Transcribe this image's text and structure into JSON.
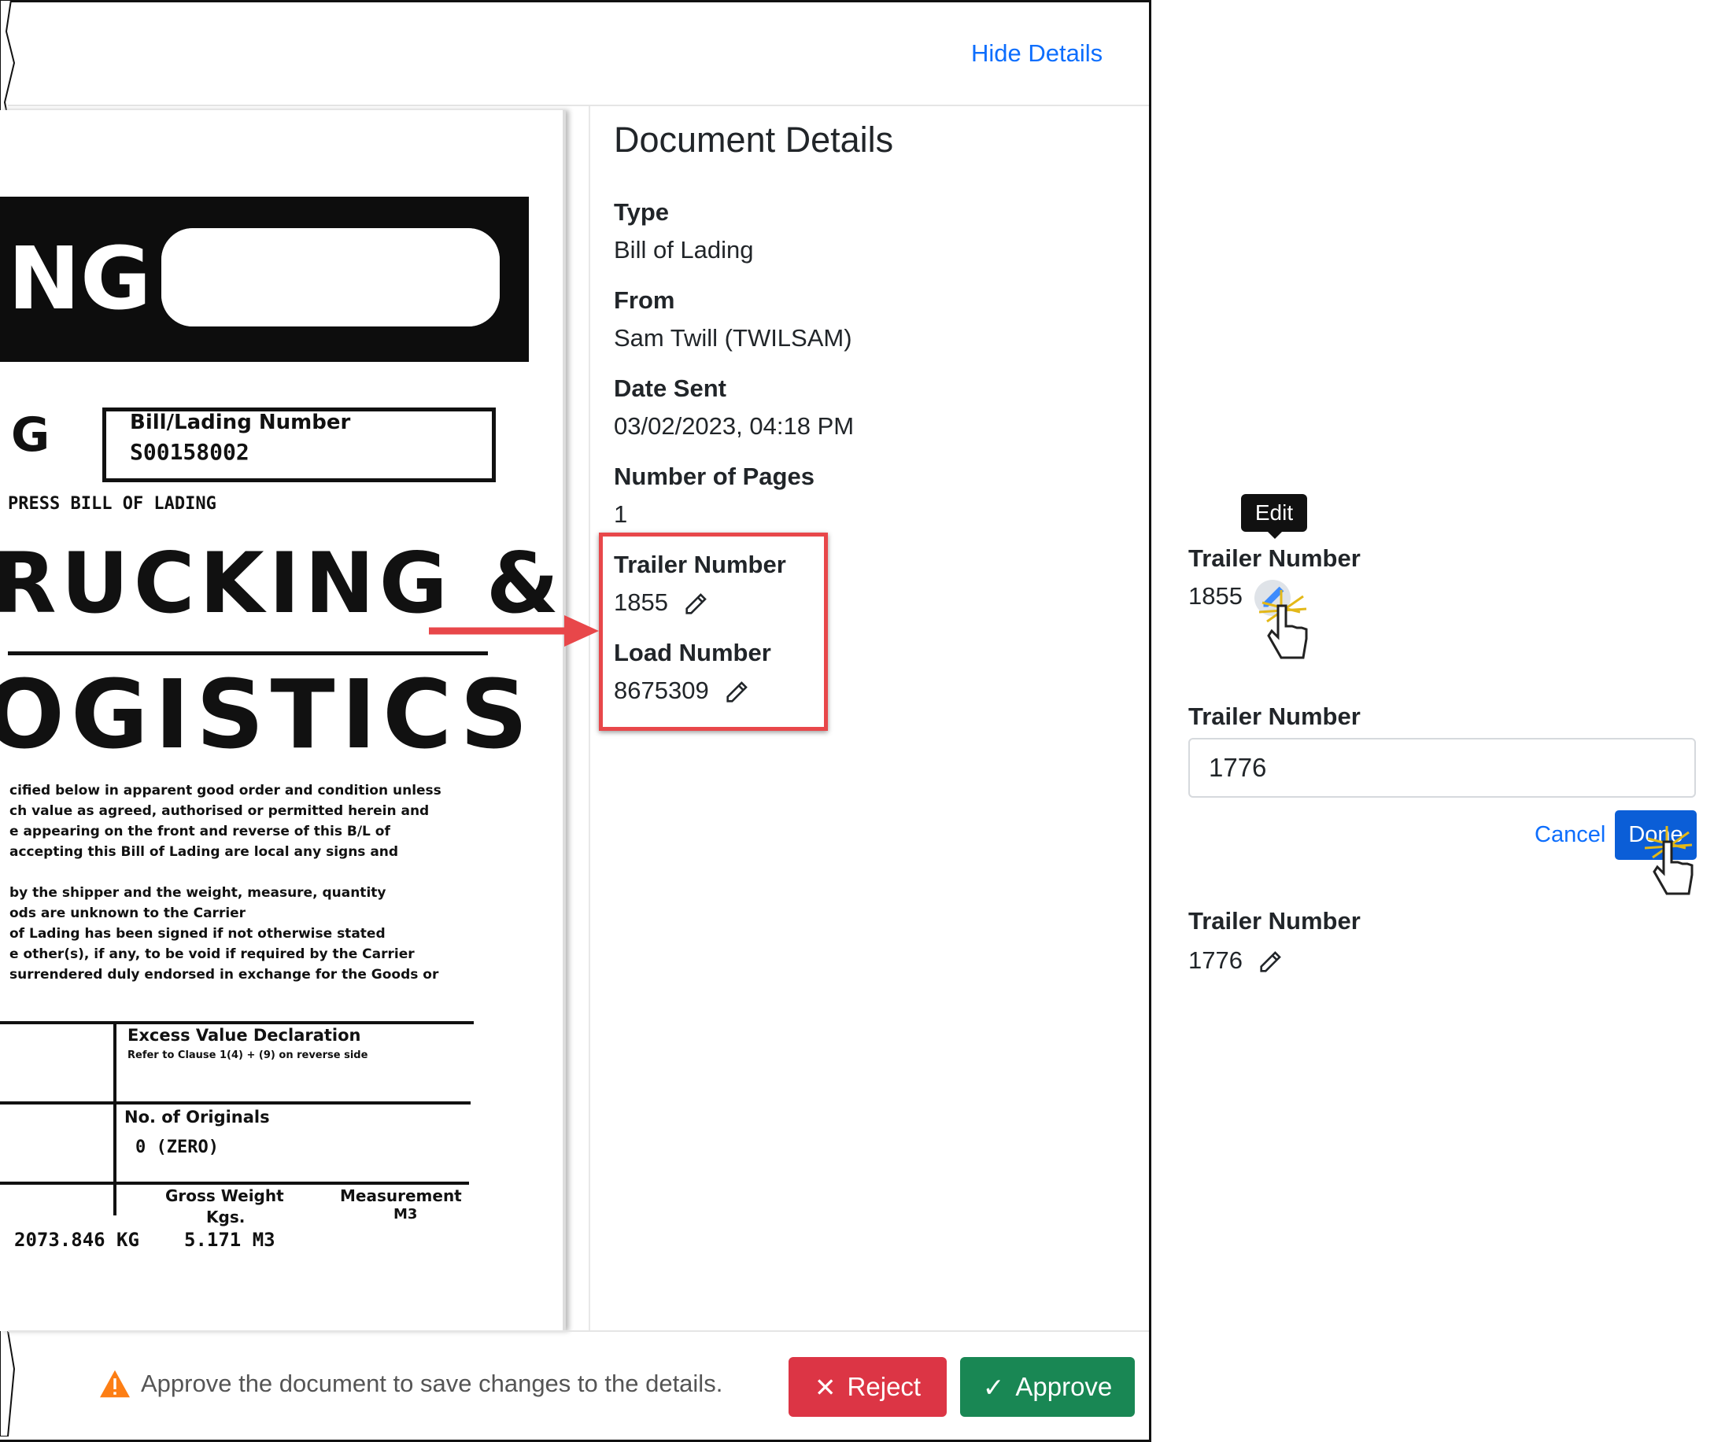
{
  "header": {
    "hide_details": "Hide Details"
  },
  "document_scan": {
    "banner_text": "NG",
    "left_g": "G",
    "bol_label": "Bill/Lading Number",
    "bol_number": "S00158002",
    "express": "PRESS BILL OF LADING",
    "line1": "RUCKING &",
    "line2": "OGISTICS",
    "para1": [
      "cified below in apparent good order and condition unless",
      "ch value as agreed, authorised or permitted herein and",
      "e appearing on the front and reverse of this B/L of",
      "accepting this Bill of Lading are local any signs and"
    ],
    "para2": [
      "by the shipper and the weight, measure, quantity",
      "ods are unknown to the Carrier",
      "of Lading has been signed if not otherwise stated",
      "e other(s), if any, to be void if required by the Carrier",
      "surrendered duly endorsed in exchange for the Goods or"
    ],
    "excess": "Excess Value Declaration",
    "excess_note": "Refer to Clause 1(4) + (9) on reverse side",
    "originals": "No. of Originals",
    "originals_value": "0 (ZERO)",
    "gross_weight": "Gross Weight",
    "kgs": "Kgs.",
    "measurement": "Measurement",
    "m3": "M3",
    "weight_value": "2073.846 KG",
    "measure_value": "5.171 M3"
  },
  "details": {
    "title": "Document Details",
    "fields": [
      {
        "label": "Type",
        "value": "Bill of Lading"
      },
      {
        "label": "From",
        "value": "Sam Twill (TWILSAM)"
      },
      {
        "label": "Date Sent",
        "value": "03/02/2023, 04:18 PM"
      },
      {
        "label": "Number of Pages",
        "value": "1"
      }
    ],
    "editable": [
      {
        "label": "Trailer Number",
        "value": "1855",
        "icon": "pencil-icon"
      },
      {
        "label": "Load Number",
        "value": "8675309",
        "icon": "pencil-icon"
      }
    ]
  },
  "footer": {
    "warning": "Approve the document to save changes to the details.",
    "reject": "Reject",
    "approve": "Approve"
  },
  "callouts": {
    "hover": {
      "label": "Trailer Number",
      "value": "1855",
      "tooltip": "Edit"
    },
    "editing": {
      "label": "Trailer Number",
      "input_value": "1776",
      "cancel": "Cancel",
      "done": "Done"
    },
    "saved": {
      "label": "Trailer Number",
      "value": "1776"
    }
  },
  "colors": {
    "link": "#0d6efd",
    "reject": "#dc3545",
    "approve": "#198754",
    "highlight": "#e8474a",
    "done": "#0b5ed7"
  }
}
